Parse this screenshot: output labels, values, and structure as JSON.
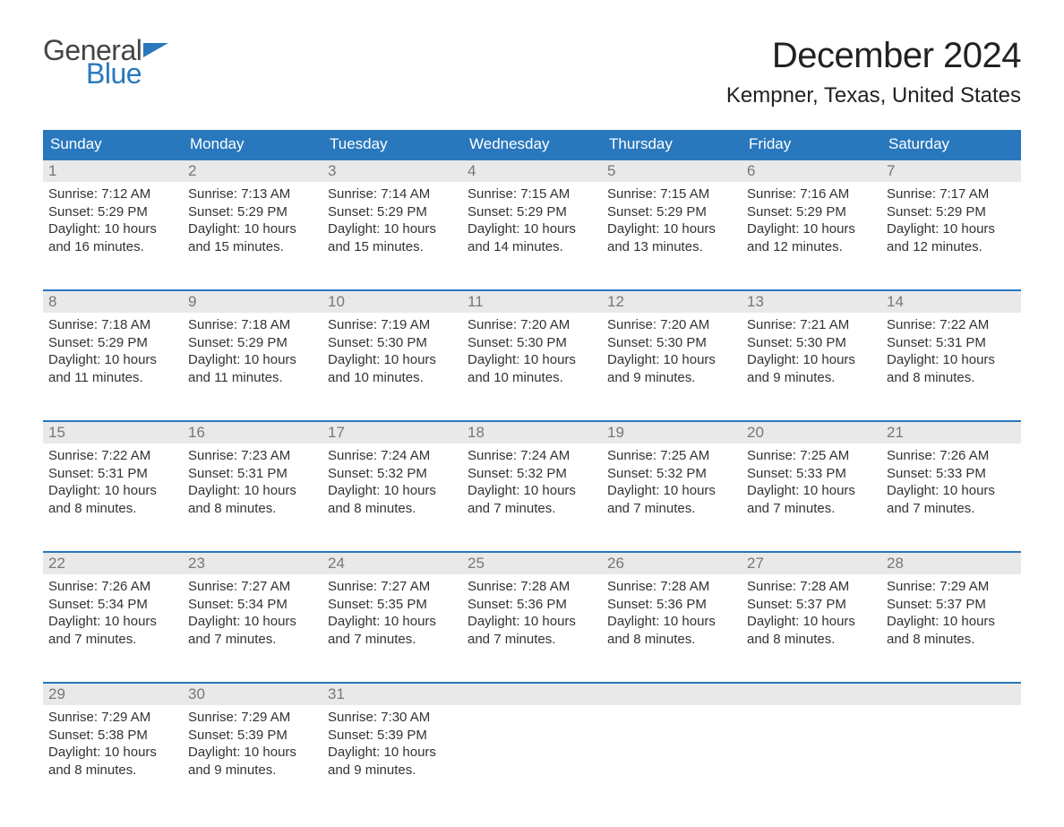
{
  "logo": {
    "general": "General",
    "blue": "Blue",
    "flag_color": "#2978bd"
  },
  "title": "December 2024",
  "location": "Kempner, Texas, United States",
  "colors": {
    "header_bg": "#2978bd",
    "header_text": "#ffffff",
    "daynum_bg": "#e9e9e9",
    "daynum_text": "#777777",
    "body_text": "#333333",
    "row_border": "#2978bd",
    "page_bg": "#ffffff"
  },
  "typography": {
    "title_fontsize": 40,
    "location_fontsize": 24,
    "dow_fontsize": 17,
    "daynum_fontsize": 17,
    "body_fontsize": 15
  },
  "days_of_week": [
    "Sunday",
    "Monday",
    "Tuesday",
    "Wednesday",
    "Thursday",
    "Friday",
    "Saturday"
  ],
  "weeks": [
    [
      {
        "n": "1",
        "sunrise": "Sunrise: 7:12 AM",
        "sunset": "Sunset: 5:29 PM",
        "d1": "Daylight: 10 hours",
        "d2": "and 16 minutes."
      },
      {
        "n": "2",
        "sunrise": "Sunrise: 7:13 AM",
        "sunset": "Sunset: 5:29 PM",
        "d1": "Daylight: 10 hours",
        "d2": "and 15 minutes."
      },
      {
        "n": "3",
        "sunrise": "Sunrise: 7:14 AM",
        "sunset": "Sunset: 5:29 PM",
        "d1": "Daylight: 10 hours",
        "d2": "and 15 minutes."
      },
      {
        "n": "4",
        "sunrise": "Sunrise: 7:15 AM",
        "sunset": "Sunset: 5:29 PM",
        "d1": "Daylight: 10 hours",
        "d2": "and 14 minutes."
      },
      {
        "n": "5",
        "sunrise": "Sunrise: 7:15 AM",
        "sunset": "Sunset: 5:29 PM",
        "d1": "Daylight: 10 hours",
        "d2": "and 13 minutes."
      },
      {
        "n": "6",
        "sunrise": "Sunrise: 7:16 AM",
        "sunset": "Sunset: 5:29 PM",
        "d1": "Daylight: 10 hours",
        "d2": "and 12 minutes."
      },
      {
        "n": "7",
        "sunrise": "Sunrise: 7:17 AM",
        "sunset": "Sunset: 5:29 PM",
        "d1": "Daylight: 10 hours",
        "d2": "and 12 minutes."
      }
    ],
    [
      {
        "n": "8",
        "sunrise": "Sunrise: 7:18 AM",
        "sunset": "Sunset: 5:29 PM",
        "d1": "Daylight: 10 hours",
        "d2": "and 11 minutes."
      },
      {
        "n": "9",
        "sunrise": "Sunrise: 7:18 AM",
        "sunset": "Sunset: 5:29 PM",
        "d1": "Daylight: 10 hours",
        "d2": "and 11 minutes."
      },
      {
        "n": "10",
        "sunrise": "Sunrise: 7:19 AM",
        "sunset": "Sunset: 5:30 PM",
        "d1": "Daylight: 10 hours",
        "d2": "and 10 minutes."
      },
      {
        "n": "11",
        "sunrise": "Sunrise: 7:20 AM",
        "sunset": "Sunset: 5:30 PM",
        "d1": "Daylight: 10 hours",
        "d2": "and 10 minutes."
      },
      {
        "n": "12",
        "sunrise": "Sunrise: 7:20 AM",
        "sunset": "Sunset: 5:30 PM",
        "d1": "Daylight: 10 hours",
        "d2": "and 9 minutes."
      },
      {
        "n": "13",
        "sunrise": "Sunrise: 7:21 AM",
        "sunset": "Sunset: 5:30 PM",
        "d1": "Daylight: 10 hours",
        "d2": "and 9 minutes."
      },
      {
        "n": "14",
        "sunrise": "Sunrise: 7:22 AM",
        "sunset": "Sunset: 5:31 PM",
        "d1": "Daylight: 10 hours",
        "d2": "and 8 minutes."
      }
    ],
    [
      {
        "n": "15",
        "sunrise": "Sunrise: 7:22 AM",
        "sunset": "Sunset: 5:31 PM",
        "d1": "Daylight: 10 hours",
        "d2": "and 8 minutes."
      },
      {
        "n": "16",
        "sunrise": "Sunrise: 7:23 AM",
        "sunset": "Sunset: 5:31 PM",
        "d1": "Daylight: 10 hours",
        "d2": "and 8 minutes."
      },
      {
        "n": "17",
        "sunrise": "Sunrise: 7:24 AM",
        "sunset": "Sunset: 5:32 PM",
        "d1": "Daylight: 10 hours",
        "d2": "and 8 minutes."
      },
      {
        "n": "18",
        "sunrise": "Sunrise: 7:24 AM",
        "sunset": "Sunset: 5:32 PM",
        "d1": "Daylight: 10 hours",
        "d2": "and 7 minutes."
      },
      {
        "n": "19",
        "sunrise": "Sunrise: 7:25 AM",
        "sunset": "Sunset: 5:32 PM",
        "d1": "Daylight: 10 hours",
        "d2": "and 7 minutes."
      },
      {
        "n": "20",
        "sunrise": "Sunrise: 7:25 AM",
        "sunset": "Sunset: 5:33 PM",
        "d1": "Daylight: 10 hours",
        "d2": "and 7 minutes."
      },
      {
        "n": "21",
        "sunrise": "Sunrise: 7:26 AM",
        "sunset": "Sunset: 5:33 PM",
        "d1": "Daylight: 10 hours",
        "d2": "and 7 minutes."
      }
    ],
    [
      {
        "n": "22",
        "sunrise": "Sunrise: 7:26 AM",
        "sunset": "Sunset: 5:34 PM",
        "d1": "Daylight: 10 hours",
        "d2": "and 7 minutes."
      },
      {
        "n": "23",
        "sunrise": "Sunrise: 7:27 AM",
        "sunset": "Sunset: 5:34 PM",
        "d1": "Daylight: 10 hours",
        "d2": "and 7 minutes."
      },
      {
        "n": "24",
        "sunrise": "Sunrise: 7:27 AM",
        "sunset": "Sunset: 5:35 PM",
        "d1": "Daylight: 10 hours",
        "d2": "and 7 minutes."
      },
      {
        "n": "25",
        "sunrise": "Sunrise: 7:28 AM",
        "sunset": "Sunset: 5:36 PM",
        "d1": "Daylight: 10 hours",
        "d2": "and 7 minutes."
      },
      {
        "n": "26",
        "sunrise": "Sunrise: 7:28 AM",
        "sunset": "Sunset: 5:36 PM",
        "d1": "Daylight: 10 hours",
        "d2": "and 8 minutes."
      },
      {
        "n": "27",
        "sunrise": "Sunrise: 7:28 AM",
        "sunset": "Sunset: 5:37 PM",
        "d1": "Daylight: 10 hours",
        "d2": "and 8 minutes."
      },
      {
        "n": "28",
        "sunrise": "Sunrise: 7:29 AM",
        "sunset": "Sunset: 5:37 PM",
        "d1": "Daylight: 10 hours",
        "d2": "and 8 minutes."
      }
    ],
    [
      {
        "n": "29",
        "sunrise": "Sunrise: 7:29 AM",
        "sunset": "Sunset: 5:38 PM",
        "d1": "Daylight: 10 hours",
        "d2": "and 8 minutes."
      },
      {
        "n": "30",
        "sunrise": "Sunrise: 7:29 AM",
        "sunset": "Sunset: 5:39 PM",
        "d1": "Daylight: 10 hours",
        "d2": "and 9 minutes."
      },
      {
        "n": "31",
        "sunrise": "Sunrise: 7:30 AM",
        "sunset": "Sunset: 5:39 PM",
        "d1": "Daylight: 10 hours",
        "d2": "and 9 minutes."
      },
      null,
      null,
      null,
      null
    ]
  ]
}
